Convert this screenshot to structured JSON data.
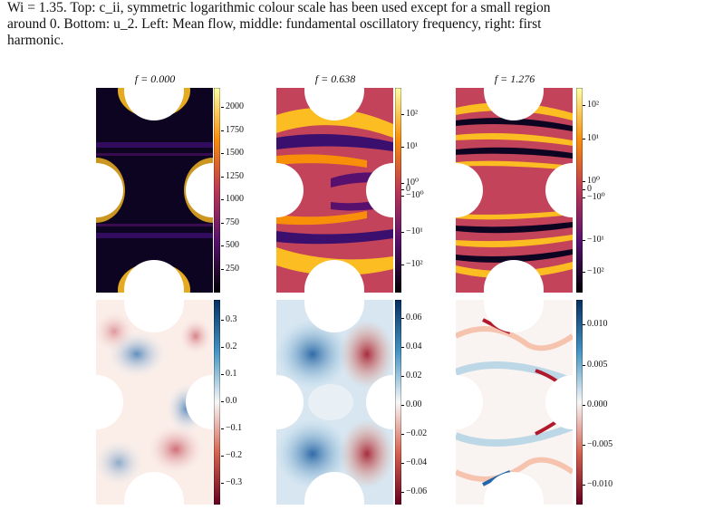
{
  "caption": {
    "line1": "Wi = 1.35. Top: c_ii, symmetric logarithmic colour scale has been used except for a small region",
    "line2": "around 0. Bottom: u_2. Left: Mean flow, middle: fundamental oscillatory frequency, right: first",
    "line3": "harmonic."
  },
  "panels": {
    "titles": [
      "f = 0.000",
      "f = 0.638",
      "f = 1.276"
    ],
    "top_left_ticks": [
      "2000",
      "1750",
      "1500",
      "1250",
      "1000",
      "750",
      "500",
      "250"
    ],
    "top_mid_ticks": [
      "10²",
      "10¹",
      "10⁰",
      "0",
      "−10⁰",
      "−10¹",
      "−10²"
    ],
    "top_right_ticks": [
      "10²",
      "10¹",
      "10⁰",
      "0",
      "−10⁰",
      "−10¹",
      "−10²"
    ],
    "bot_left_ticks": [
      "0.3",
      "0.2",
      "0.1",
      "0.0",
      "−0.1",
      "−0.2",
      "−0.3"
    ],
    "bot_mid_ticks": [
      "0.06",
      "0.04",
      "0.02",
      "0.00",
      "−0.02",
      "−0.04",
      "−0.06"
    ],
    "bot_right_ticks": [
      "0.010",
      "0.005",
      "0.000",
      "−0.005",
      "−0.010"
    ]
  },
  "colors": {
    "inferno_dark": "#0d0421",
    "inferno_mid": "#c2435a",
    "inferno_bright": "#fcbd22",
    "rdbu_red": "#9e0a21",
    "rdbu_blue": "#0b4d8b"
  }
}
